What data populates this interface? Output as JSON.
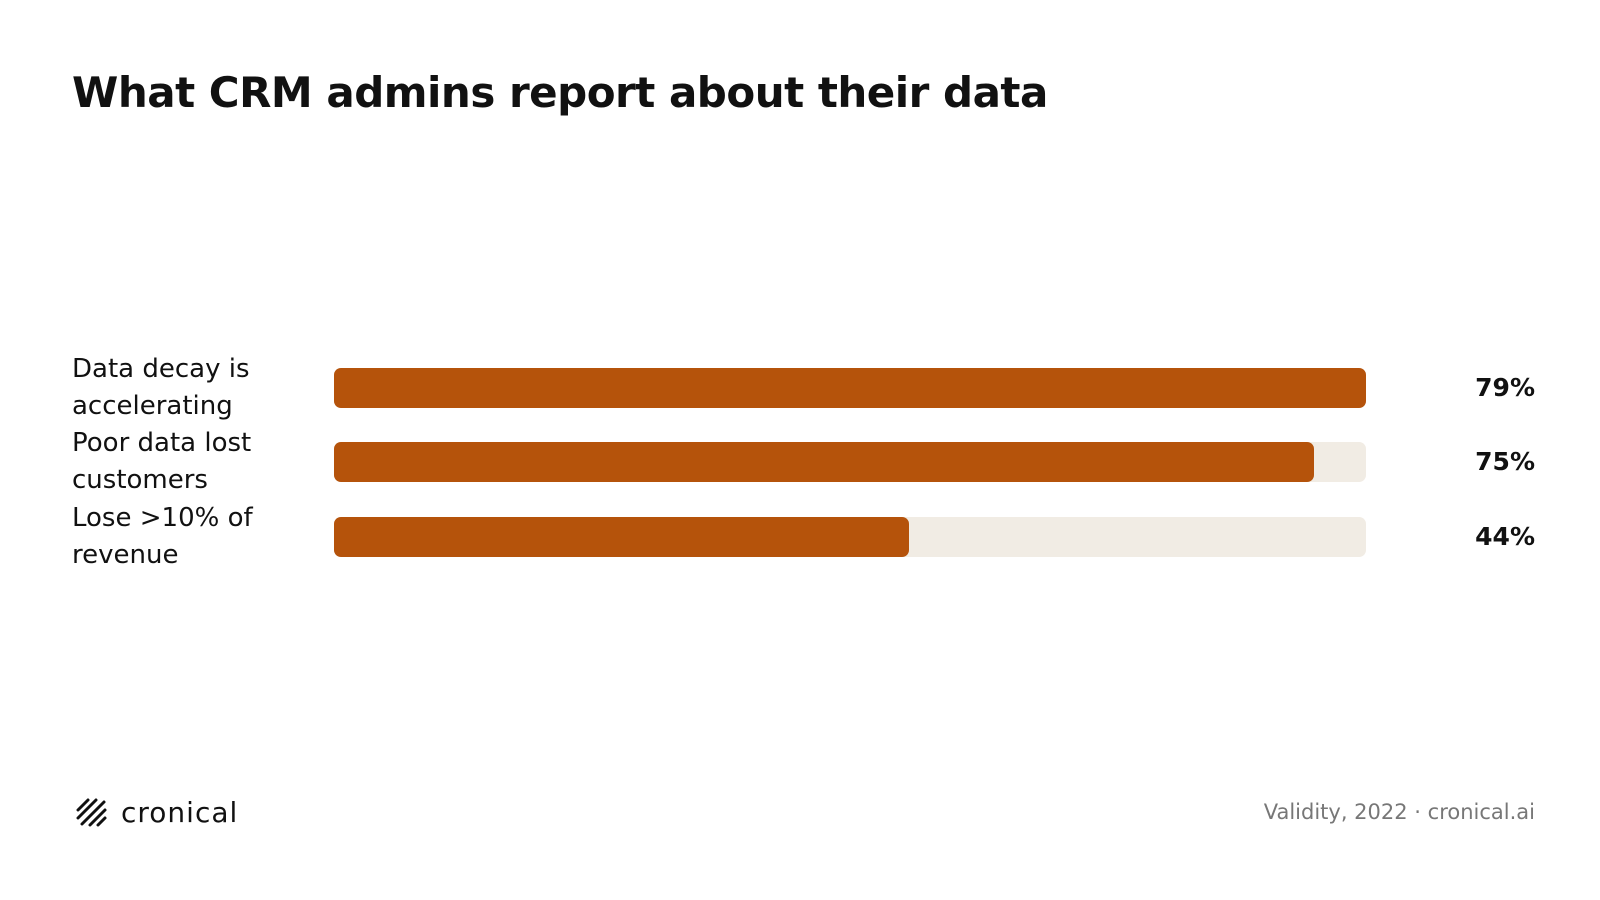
{
  "chart_data": {
    "type": "bar",
    "orientation": "horizontal",
    "title": "What CRM admins report about their data",
    "categories": [
      "Data decay is accelerating",
      "Poor data lost customers",
      "Lose >10% of revenue"
    ],
    "values": [
      79,
      75,
      44
    ],
    "value_labels": [
      "79%",
      "75%",
      "44%"
    ],
    "color": "#b5530b",
    "track_color": "#f1ece4",
    "source": "Validity, 2022 · cronical.ai",
    "brand": "cronical"
  }
}
